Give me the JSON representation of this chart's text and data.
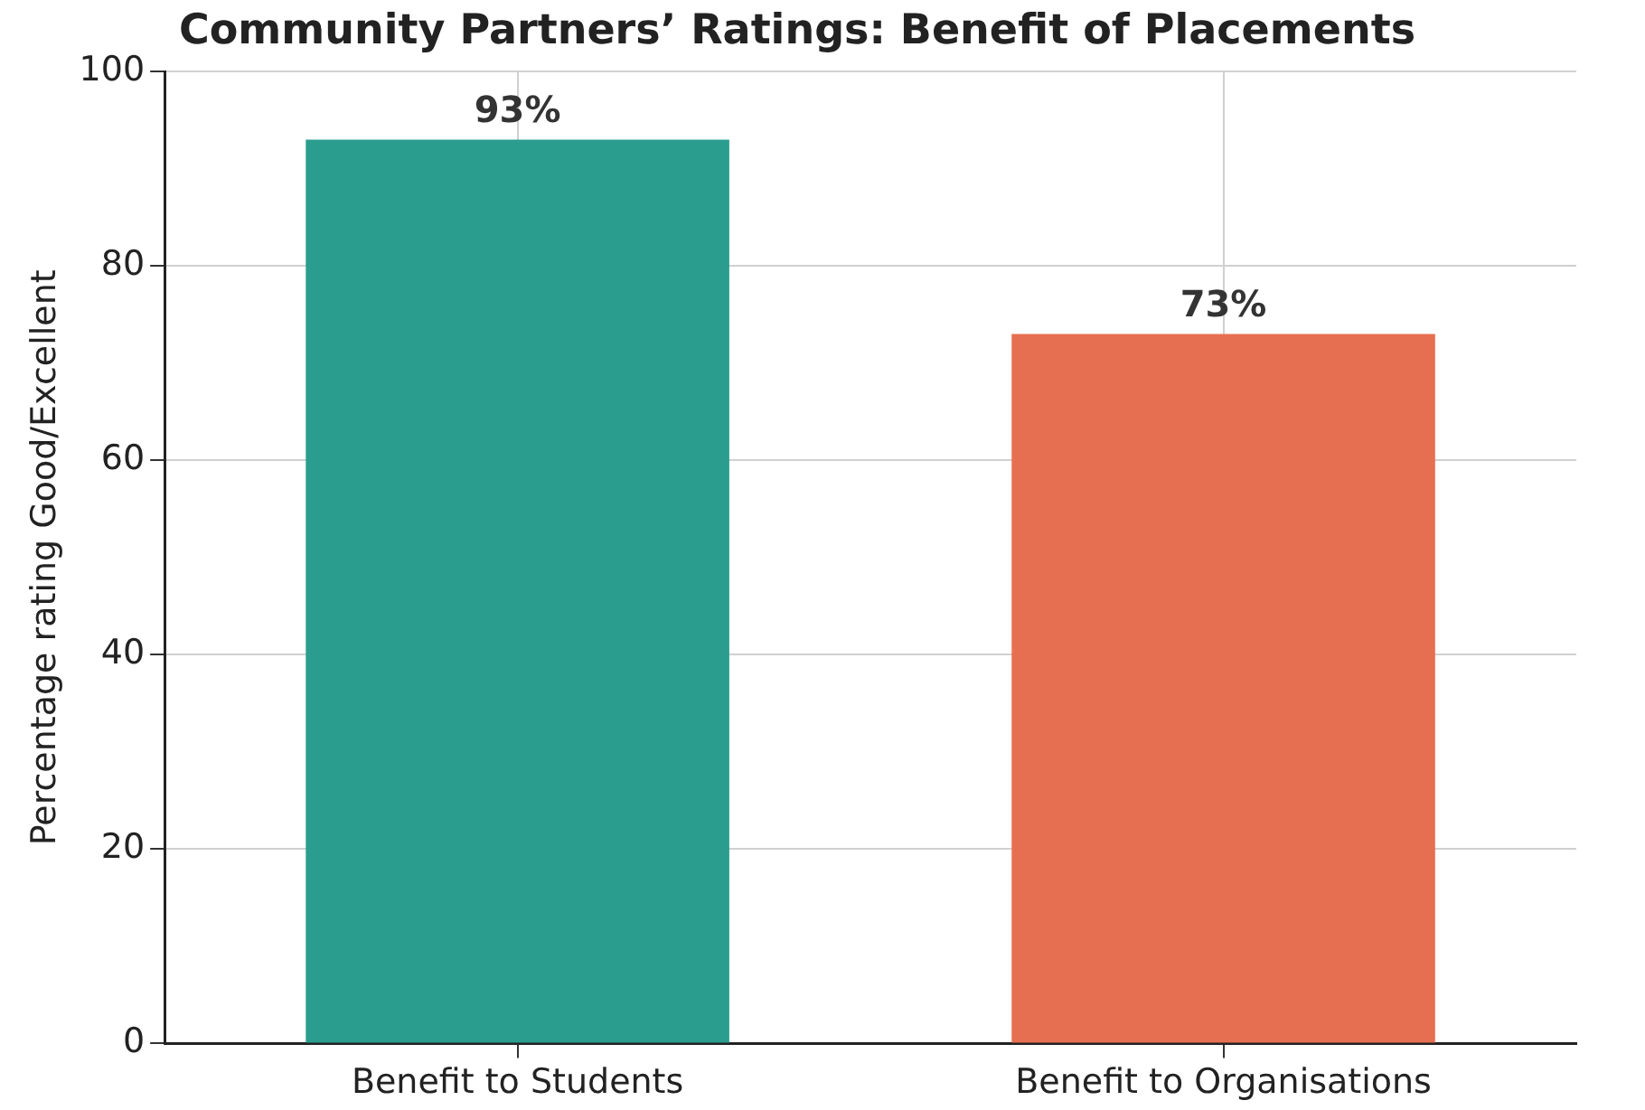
{
  "chart_data": {
    "type": "bar",
    "title": "Community Partners’ Ratings: Benefit of Placements",
    "ylabel": "Percentage rating Good/Excellent",
    "categories": [
      "Benefit to Students",
      "Benefit to Organisations"
    ],
    "values": [
      93,
      73
    ],
    "colors": [
      "#2a9d8f",
      "#e76f51"
    ],
    "value_labels": [
      "93%",
      "73%"
    ],
    "ylim": [
      0,
      100
    ],
    "yticks": [
      0,
      20,
      40,
      60,
      80,
      100
    ],
    "grid": true,
    "legend": false
  }
}
